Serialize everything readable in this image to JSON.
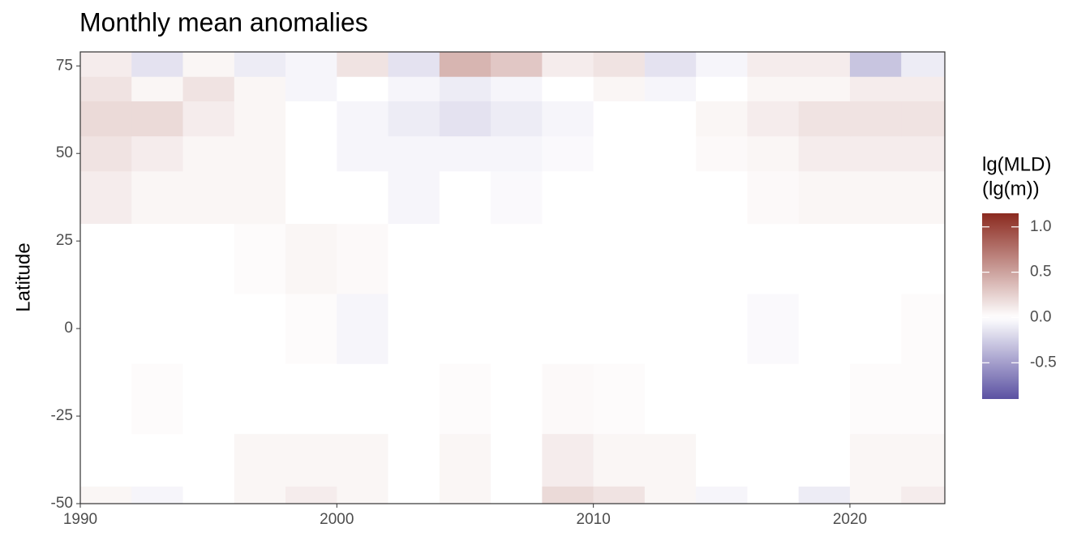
{
  "chart_data": {
    "type": "heatmap",
    "title": "Monthly mean anomalies",
    "y_label": "Latitude",
    "legend_title": [
      "lg(MLD)",
      "(lg(m))"
    ],
    "xlim": [
      1990,
      2023.7
    ],
    "xticks": [
      1990,
      2000,
      2010,
      2020
    ],
    "ylim": [
      -50,
      79
    ],
    "yticks": [
      -50,
      -25,
      0,
      25,
      50,
      75
    ],
    "x_bins": [
      1990,
      1992,
      1994,
      1996,
      1998,
      2000,
      2002,
      2004,
      2006,
      2008,
      2010,
      2012,
      2014,
      2016,
      2018,
      2020,
      2022,
      2023.7
    ],
    "y_bins": [
      -50,
      -45,
      -30,
      -10,
      10,
      30,
      45,
      55,
      65,
      72,
      79
    ],
    "z": [
      [
        0.05,
        -0.05,
        0.0,
        0.05,
        0.1,
        0.05,
        0.0,
        0.05,
        0.0,
        0.2,
        0.15,
        0.05,
        -0.05,
        0.0,
        -0.1,
        0.05,
        0.1
      ],
      [
        0,
        0,
        0,
        0.05,
        0.05,
        0.05,
        0,
        0.05,
        0,
        0.1,
        0.05,
        0.05,
        0,
        0,
        0,
        0.05,
        0.05
      ],
      [
        0,
        0.02,
        0,
        0,
        0,
        0,
        0,
        0.02,
        0,
        0.03,
        0.02,
        0,
        0,
        0,
        0,
        0.02,
        0.02
      ],
      [
        0,
        0,
        0,
        0,
        0.02,
        -0.05,
        0,
        0,
        0,
        0,
        0,
        0,
        0,
        -0.03,
        0,
        0,
        0.02
      ],
      [
        0,
        0,
        0,
        0.02,
        0.05,
        0.03,
        0,
        0,
        0,
        0,
        0,
        0,
        0,
        0,
        0,
        0,
        0
      ],
      [
        0.1,
        0.05,
        0.05,
        0.05,
        0,
        0,
        -0.05,
        0,
        -0.03,
        0,
        0,
        0,
        0,
        0.03,
        0.05,
        0.05,
        0.05
      ],
      [
        0.15,
        0.1,
        0.05,
        0.05,
        0,
        -0.05,
        -0.05,
        -0.05,
        -0.05,
        -0.03,
        0,
        0,
        0.03,
        0.05,
        0.1,
        0.1,
        0.1
      ],
      [
        0.2,
        0.2,
        0.1,
        0.05,
        0,
        -0.05,
        -0.1,
        -0.15,
        -0.1,
        -0.05,
        0,
        0,
        0.05,
        0.1,
        0.15,
        0.15,
        0.15
      ],
      [
        0.15,
        0.05,
        0.15,
        0.05,
        -0.05,
        0,
        -0.05,
        -0.1,
        -0.05,
        0,
        0.05,
        -0.05,
        0,
        0.05,
        0.05,
        0.1,
        0.1
      ],
      [
        0.1,
        -0.15,
        0.05,
        -0.1,
        -0.05,
        0.15,
        -0.15,
        0.4,
        0.3,
        0.1,
        0.15,
        -0.15,
        -0.05,
        0.1,
        0.1,
        -0.3,
        -0.1
      ]
    ],
    "colorscale": {
      "low": "#5b51a2",
      "mid": "#ffffff",
      "high": "#8b2a1f",
      "midpoint": 0,
      "limits": [
        -0.9,
        1.15
      ]
    },
    "colorbar_ticks": [
      {
        "value": 1.0,
        "label": "1.0"
      },
      0.5,
      {
        "value": 0,
        "label": "0.0"
      },
      -0.5
    ]
  }
}
